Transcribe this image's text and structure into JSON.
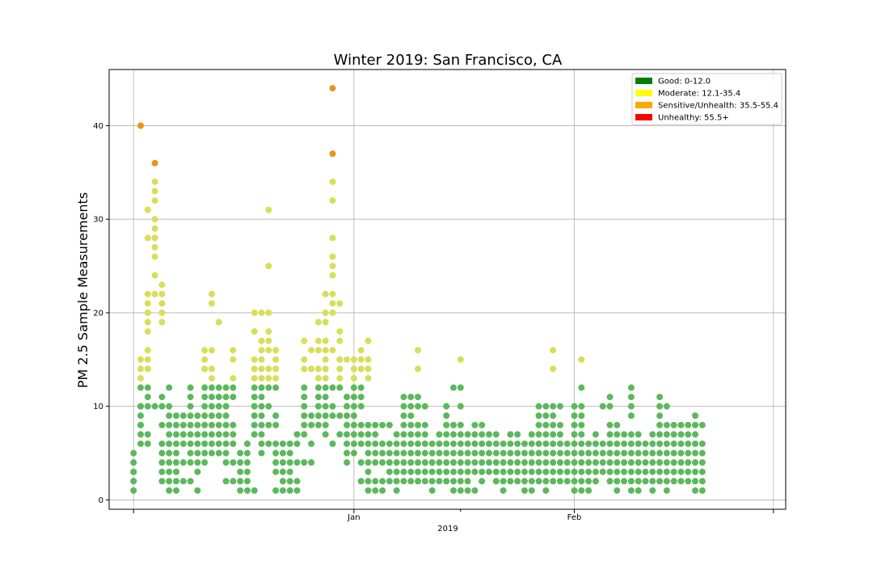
{
  "chart_data": {
    "type": "scatter",
    "title": "Winter 2019: San Francisco, CA",
    "ylabel": "PM 2.5 Sample Measurements",
    "x_axis_label": "2019",
    "x_date_range": [
      "2018-12-02",
      "2019-02-28"
    ],
    "ylim": [
      -1,
      46
    ],
    "y_ticks": [
      0,
      10,
      20,
      30,
      40
    ],
    "x_ticks": [
      {
        "date": "2018-12-01",
        "label": ""
      },
      {
        "date": "2019-01-01",
        "label": "Jan"
      },
      {
        "date": "2019-02-01",
        "label": "Feb"
      },
      {
        "date": "2019-03-01",
        "label": ""
      }
    ],
    "x_minor_ticks": [
      {
        "date": "2019-01-16",
        "label": ""
      }
    ],
    "grid": true,
    "legend_position": "top-right",
    "legend": [
      {
        "label": "Good: 0-12.0",
        "color": "#008000"
      },
      {
        "label": "Moderate: 12.1-35.4",
        "color": "#ffff00"
      },
      {
        "label": "Sensitive/Unhealth: 35.5-55.4",
        "color": "#ffa500"
      },
      {
        "label": "Unhealthy: 55.5+",
        "color": "#ff0000"
      }
    ],
    "point_colors": {
      "good": "#5cb85c",
      "moderate": "#d8de5a",
      "sensitive": "#e8951e",
      "unhealthy": "#e03030"
    },
    "series": [
      {
        "date": "2018-12-01",
        "values": [
          1,
          2,
          3,
          4,
          5,
          3,
          2
        ]
      },
      {
        "date": "2018-12-02",
        "values": [
          6,
          7,
          8,
          9,
          10,
          12,
          13,
          14,
          15,
          40,
          10,
          8
        ]
      },
      {
        "date": "2018-12-03",
        "values": [
          6,
          7,
          10,
          11,
          12,
          14,
          15,
          16,
          18,
          19,
          20,
          21,
          22,
          28,
          31,
          14
        ]
      },
      {
        "date": "2018-12-04",
        "values": [
          10,
          22,
          24,
          26,
          27,
          28,
          29,
          30,
          32,
          33,
          34,
          36,
          28
        ]
      },
      {
        "date": "2018-12-05",
        "values": [
          2,
          3,
          4,
          5,
          6,
          8,
          10,
          11,
          19,
          20,
          21,
          22,
          23
        ]
      },
      {
        "date": "2018-12-06",
        "values": [
          1,
          2,
          3,
          4,
          5,
          6,
          7,
          8,
          9,
          10,
          12
        ]
      },
      {
        "date": "2018-12-07",
        "values": [
          1,
          2,
          3,
          4,
          5,
          6,
          7,
          8,
          9
        ]
      },
      {
        "date": "2018-12-08",
        "values": [
          2,
          4,
          6,
          7,
          8,
          9
        ]
      },
      {
        "date": "2018-12-09",
        "values": [
          2,
          4,
          5,
          6,
          7,
          8,
          9,
          10,
          11,
          12
        ]
      },
      {
        "date": "2018-12-10",
        "values": [
          1,
          3,
          4,
          5,
          6,
          7,
          8,
          9
        ]
      },
      {
        "date": "2018-12-11",
        "values": [
          4,
          5,
          6,
          7,
          8,
          9,
          10,
          11,
          12,
          14,
          15,
          16
        ]
      },
      {
        "date": "2018-12-12",
        "values": [
          5,
          6,
          7,
          8,
          9,
          10,
          11,
          12,
          13,
          14,
          16,
          21,
          22
        ]
      },
      {
        "date": "2018-12-13",
        "values": [
          5,
          6,
          7,
          8,
          9,
          10,
          11,
          12,
          19
        ]
      },
      {
        "date": "2018-12-14",
        "values": [
          2,
          4,
          5,
          6,
          7,
          8,
          9,
          10,
          11,
          12
        ]
      },
      {
        "date": "2018-12-15",
        "values": [
          2,
          4,
          6,
          7,
          8,
          11,
          12,
          13,
          15,
          16
        ]
      },
      {
        "date": "2018-12-16",
        "values": [
          1,
          2,
          3,
          4,
          5
        ]
      },
      {
        "date": "2018-12-17",
        "values": [
          1,
          2,
          3,
          4,
          5,
          6
        ]
      },
      {
        "date": "2018-12-18",
        "values": [
          1,
          7,
          8,
          9,
          10,
          11,
          12,
          13,
          14,
          15,
          18,
          20
        ]
      },
      {
        "date": "2018-12-19",
        "values": [
          5,
          6,
          7,
          8,
          9,
          10,
          11,
          12,
          13,
          14,
          15,
          16,
          17,
          20
        ]
      },
      {
        "date": "2018-12-20",
        "values": [
          6,
          8,
          10,
          12,
          13,
          14,
          16,
          17,
          18,
          20,
          25,
          31
        ]
      },
      {
        "date": "2018-12-21",
        "values": [
          1,
          3,
          4,
          5,
          6,
          8,
          9,
          12,
          13,
          14,
          15,
          16
        ]
      },
      {
        "date": "2018-12-22",
        "values": [
          1,
          2,
          3,
          4,
          5,
          6
        ]
      },
      {
        "date": "2018-12-23",
        "values": [
          1,
          2,
          3,
          4,
          5,
          6
        ]
      },
      {
        "date": "2018-12-24",
        "values": [
          1,
          2,
          4,
          6,
          7
        ]
      },
      {
        "date": "2018-12-25",
        "values": [
          4,
          7,
          8,
          9,
          10,
          11,
          12,
          14,
          15,
          17
        ]
      },
      {
        "date": "2018-12-26",
        "values": [
          4,
          6,
          8,
          9,
          14,
          16
        ]
      },
      {
        "date": "2018-12-27",
        "values": [
          8,
          9,
          10,
          11,
          12,
          13,
          14,
          16,
          17,
          19
        ]
      },
      {
        "date": "2018-12-28",
        "values": [
          7,
          8,
          9,
          10,
          11,
          12,
          13,
          14,
          15,
          16,
          17,
          19,
          20,
          22
        ]
      },
      {
        "date": "2018-12-29",
        "values": [
          6,
          9,
          10,
          12,
          16,
          20,
          21,
          22,
          24,
          25,
          26,
          28,
          32,
          34,
          37,
          44
        ]
      },
      {
        "date": "2018-12-30",
        "values": [
          7,
          9,
          12,
          13,
          14,
          15,
          17,
          18,
          21
        ]
      },
      {
        "date": "2018-12-31",
        "values": [
          4,
          5,
          6,
          7,
          8,
          9,
          10,
          11,
          15
        ]
      },
      {
        "date": "2019-01-01",
        "values": [
          5,
          6,
          7,
          8,
          9,
          10,
          11,
          12,
          13,
          14,
          15
        ]
      },
      {
        "date": "2019-01-02",
        "values": [
          2,
          4,
          6,
          7,
          8,
          10,
          11,
          12,
          14,
          15,
          16
        ]
      },
      {
        "date": "2019-01-03",
        "values": [
          1,
          2,
          3,
          4,
          5,
          6,
          7,
          8,
          13,
          14,
          15,
          17
        ]
      },
      {
        "date": "2019-01-04",
        "values": [
          1,
          2,
          4,
          5,
          6,
          7,
          8
        ]
      },
      {
        "date": "2019-01-05",
        "values": [
          1,
          2,
          4,
          5,
          6,
          8
        ]
      },
      {
        "date": "2019-01-06",
        "values": [
          2,
          3,
          4,
          5,
          6,
          8
        ]
      },
      {
        "date": "2019-01-07",
        "values": [
          1,
          2,
          3,
          4,
          5,
          6,
          7
        ]
      },
      {
        "date": "2019-01-08",
        "values": [
          2,
          3,
          4,
          5,
          6,
          7,
          8,
          9,
          10,
          11
        ]
      },
      {
        "date": "2019-01-09",
        "values": [
          2,
          3,
          4,
          5,
          6,
          7,
          8,
          9,
          10,
          11
        ]
      },
      {
        "date": "2019-01-10",
        "values": [
          2,
          3,
          4,
          5,
          6,
          7,
          8,
          10,
          11,
          14,
          16
        ]
      },
      {
        "date": "2019-01-11",
        "values": [
          2,
          3,
          4,
          5,
          6,
          7,
          8,
          10
        ]
      },
      {
        "date": "2019-01-12",
        "values": [
          1,
          2,
          3,
          4,
          5,
          6
        ]
      },
      {
        "date": "2019-01-13",
        "values": [
          2,
          3,
          4,
          5,
          6,
          7
        ]
      },
      {
        "date": "2019-01-14",
        "values": [
          2,
          3,
          4,
          5,
          6,
          7,
          8,
          9,
          10
        ]
      },
      {
        "date": "2019-01-15",
        "values": [
          1,
          2,
          3,
          4,
          5,
          6,
          7,
          8,
          12
        ]
      },
      {
        "date": "2019-01-16",
        "values": [
          1,
          2,
          3,
          4,
          5,
          6,
          7,
          8,
          10,
          12,
          15
        ]
      },
      {
        "date": "2019-01-17",
        "values": [
          1,
          2,
          3,
          4,
          5,
          6,
          7
        ]
      },
      {
        "date": "2019-01-18",
        "values": [
          1,
          3,
          4,
          5,
          6,
          7,
          8
        ]
      },
      {
        "date": "2019-01-19",
        "values": [
          2,
          3,
          4,
          5,
          6,
          7,
          8
        ]
      },
      {
        "date": "2019-01-20",
        "values": [
          3,
          4,
          5,
          6,
          7
        ]
      },
      {
        "date": "2019-01-21",
        "values": [
          2,
          3,
          4,
          5,
          6,
          7
        ]
      },
      {
        "date": "2019-01-22",
        "values": [
          1,
          2,
          3,
          4,
          5,
          6
        ]
      },
      {
        "date": "2019-01-23",
        "values": [
          2,
          3,
          4,
          5,
          6,
          7
        ]
      },
      {
        "date": "2019-01-24",
        "values": [
          2,
          3,
          4,
          5,
          6,
          7
        ]
      },
      {
        "date": "2019-01-25",
        "values": [
          1,
          2,
          3,
          4,
          5,
          6
        ]
      },
      {
        "date": "2019-01-26",
        "values": [
          1,
          2,
          3,
          4,
          5,
          6,
          7
        ]
      },
      {
        "date": "2019-01-27",
        "values": [
          2,
          3,
          4,
          5,
          6,
          7,
          8,
          9,
          10
        ]
      },
      {
        "date": "2019-01-28",
        "values": [
          1,
          2,
          3,
          4,
          5,
          6,
          7,
          8,
          9,
          10
        ]
      },
      {
        "date": "2019-01-29",
        "values": [
          2,
          3,
          4,
          5,
          6,
          7,
          8,
          9,
          10,
          14,
          16
        ]
      },
      {
        "date": "2019-01-30",
        "values": [
          2,
          3,
          4,
          5,
          6,
          7,
          8,
          10
        ]
      },
      {
        "date": "2019-01-31",
        "values": [
          2,
          3,
          4,
          5,
          6
        ]
      },
      {
        "date": "2019-02-01",
        "values": [
          1,
          2,
          3,
          4,
          5,
          6,
          7,
          8,
          9,
          10
        ]
      },
      {
        "date": "2019-02-02",
        "values": [
          1,
          2,
          3,
          4,
          5,
          6,
          7,
          8,
          9,
          10,
          12,
          15
        ]
      },
      {
        "date": "2019-02-03",
        "values": [
          1,
          2,
          3,
          4,
          5,
          6
        ]
      },
      {
        "date": "2019-02-04",
        "values": [
          2,
          3,
          4,
          5,
          6,
          7
        ]
      },
      {
        "date": "2019-02-05",
        "values": [
          3,
          4,
          5,
          6,
          10
        ]
      },
      {
        "date": "2019-02-06",
        "values": [
          2,
          3,
          4,
          5,
          6,
          7,
          8,
          10,
          11
        ]
      },
      {
        "date": "2019-02-07",
        "values": [
          1,
          2,
          3,
          4,
          5,
          6,
          7,
          8
        ]
      },
      {
        "date": "2019-02-08",
        "values": [
          2,
          3,
          4,
          5,
          6,
          7
        ]
      },
      {
        "date": "2019-02-09",
        "values": [
          1,
          2,
          3,
          4,
          5,
          6,
          7,
          9,
          10,
          11,
          12
        ]
      },
      {
        "date": "2019-02-10",
        "values": [
          1,
          2,
          3,
          4,
          5,
          6,
          7
        ]
      },
      {
        "date": "2019-02-11",
        "values": [
          2,
          3,
          4,
          5,
          6
        ]
      },
      {
        "date": "2019-02-12",
        "values": [
          1,
          2,
          3,
          4,
          5,
          6,
          7
        ]
      },
      {
        "date": "2019-02-13",
        "values": [
          2,
          3,
          4,
          5,
          6,
          7,
          8,
          9,
          10,
          11
        ]
      },
      {
        "date": "2019-02-14",
        "values": [
          1,
          2,
          3,
          4,
          5,
          6,
          7,
          8,
          10
        ]
      },
      {
        "date": "2019-02-15",
        "values": [
          2,
          3,
          4,
          5,
          6,
          7,
          8
        ]
      },
      {
        "date": "2019-02-16",
        "values": [
          2,
          3,
          4,
          5,
          6,
          7,
          8
        ]
      },
      {
        "date": "2019-02-17",
        "values": [
          2,
          3,
          4,
          5,
          6,
          7,
          8
        ]
      },
      {
        "date": "2019-02-18",
        "values": [
          1,
          2,
          3,
          4,
          5,
          6,
          7,
          8,
          9
        ]
      },
      {
        "date": "2019-02-19",
        "values": [
          1,
          2,
          3,
          4,
          5,
          6,
          8
        ]
      }
    ]
  }
}
